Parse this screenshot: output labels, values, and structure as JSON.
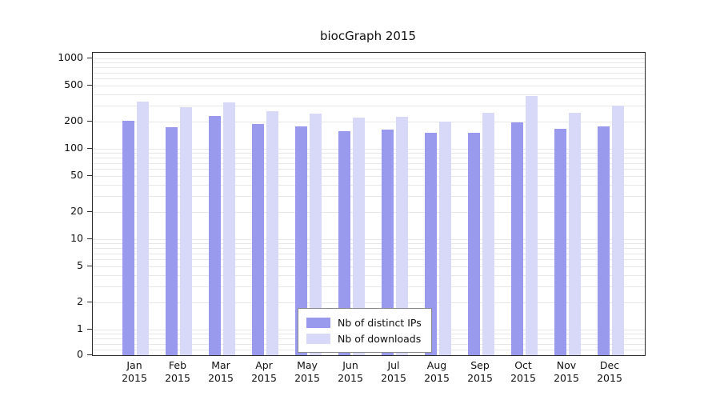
{
  "chart_data": {
    "type": "bar",
    "title": "biocGraph 2015",
    "yscale": "log",
    "ylim": [
      0,
      1000
    ],
    "y_ticks": [
      1000,
      500,
      200,
      100,
      50,
      20,
      10,
      5,
      2,
      1,
      0
    ],
    "categories": [
      "Jan",
      "Feb",
      "Mar",
      "Apr",
      "May",
      "Jun",
      "Jul",
      "Aug",
      "Sep",
      "Oct",
      "Nov",
      "Dec"
    ],
    "category_year": "2015",
    "grid": "horizontal-log-minor",
    "legend_position": "bottom-center-inside",
    "background_color": "#ffffff",
    "series": [
      {
        "name": "Nb of distinct IPs",
        "color": "#9999ee",
        "values": [
          205,
          175,
          230,
          190,
          178,
          158,
          163,
          150,
          152,
          198,
          168,
          178
        ]
      },
      {
        "name": "Nb of downloads",
        "color": "#d8d8f8",
        "values": [
          330,
          290,
          325,
          262,
          245,
          222,
          228,
          202,
          252,
          385,
          252,
          300
        ]
      }
    ]
  }
}
